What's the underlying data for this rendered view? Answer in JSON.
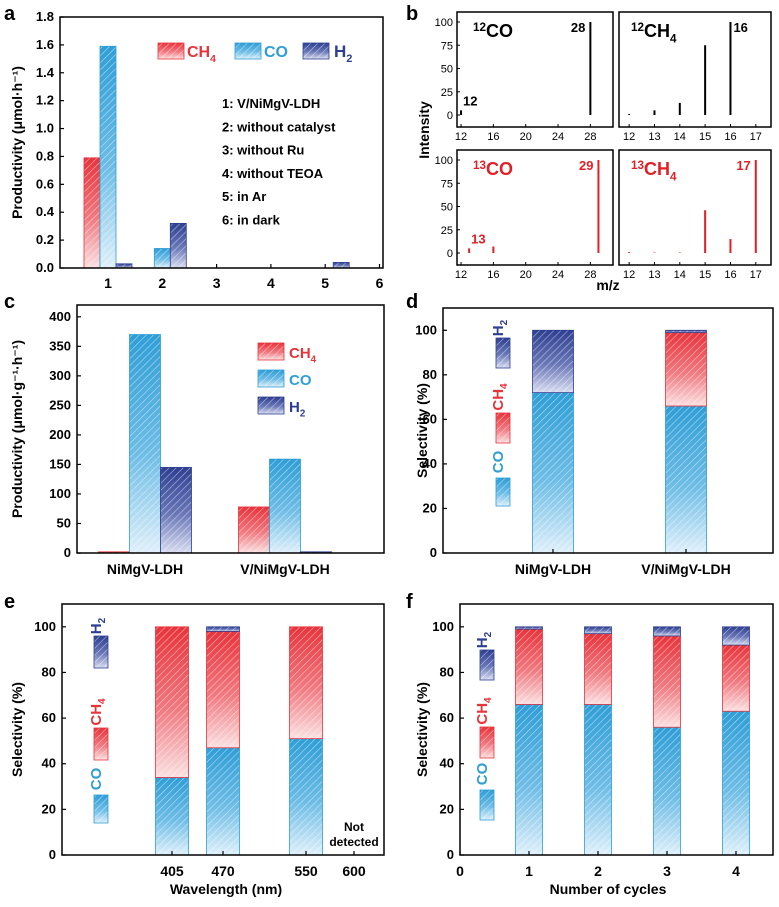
{
  "colors": {
    "ch4": "#e8333b",
    "co": "#2f9ed6",
    "h2": "#2e3f91",
    "axis": "#000000",
    "stem_black": "#000000",
    "stem_red": "#e21f26"
  },
  "chart_data": [
    {
      "panel": "a",
      "type": "bar",
      "ylabel": "Productivity (μmol·h⁻¹)",
      "ylim": [
        0,
        1.8
      ],
      "yticks": [
        "0.0",
        "0.2",
        "0.4",
        "0.6",
        "0.8",
        "1.0",
        "1.2",
        "1.4",
        "1.6",
        "1.8"
      ],
      "categories": [
        "1",
        "2",
        "3",
        "4",
        "5",
        "6"
      ],
      "series": [
        {
          "name": "CH4",
          "values": [
            0.79,
            0,
            0,
            0,
            0,
            0
          ]
        },
        {
          "name": "CO",
          "values": [
            1.59,
            0.14,
            0,
            0,
            0,
            0
          ]
        },
        {
          "name": "H2",
          "values": [
            0.03,
            0.32,
            0,
            0,
            0.04,
            0
          ]
        }
      ],
      "legend": {
        "ch4_base": "CH",
        "ch4_sub": "4",
        "co": "CO",
        "h2_base": "H",
        "h2_sub": "2"
      },
      "conditions": [
        "1: V/NiMgV-LDH",
        "2: without catalyst",
        "3: without Ru",
        "4: without TEOA",
        "5: in Ar",
        "6: in dark"
      ]
    },
    {
      "panel": "b",
      "type": "mass-spectrum",
      "ylabel": "Intensity",
      "xlabel": "m/z",
      "yticks": [
        "0",
        "25",
        "50",
        "75",
        "100"
      ],
      "subplots": [
        {
          "label_sup": "12",
          "label_base": "CO",
          "label_sub": "",
          "xticks": [
            "12",
            "16",
            "20",
            "24",
            "28"
          ],
          "x": [
            12,
            16,
            28
          ],
          "y": [
            5,
            0,
            100
          ],
          "peak_labels": [
            {
              "x": 12,
              "text": "12"
            },
            {
              "x": 28,
              "text": "28"
            }
          ],
          "color": "black"
        },
        {
          "label_sup": "12",
          "label_base": "CH",
          "label_sub": "4",
          "xticks": [
            "12",
            "13",
            "14",
            "15",
            "16",
            "17"
          ],
          "x": [
            12,
            13,
            14,
            15,
            16
          ],
          "y": [
            1,
            5,
            13,
            75,
            100
          ],
          "peak_labels": [
            {
              "x": 16,
              "text": "16"
            }
          ],
          "color": "black"
        },
        {
          "label_sup": "13",
          "label_base": "CO",
          "label_sub": "",
          "xticks": [
            "12",
            "16",
            "20",
            "24",
            "28"
          ],
          "x": [
            13,
            16,
            29
          ],
          "y": [
            5,
            7,
            100
          ],
          "peak_labels": [
            {
              "x": 13,
              "text": "13"
            },
            {
              "x": 29,
              "text": "29"
            }
          ],
          "color": "red"
        },
        {
          "label_sup": "13",
          "label_base": "CH",
          "label_sub": "4",
          "xticks": [
            "12",
            "13",
            "14",
            "15",
            "16",
            "17"
          ],
          "x": [
            12,
            13,
            14,
            15,
            16,
            17
          ],
          "y": [
            1,
            0.5,
            0.5,
            46,
            15,
            100
          ],
          "peak_labels": [
            {
              "x": 17,
              "text": "17"
            }
          ],
          "color": "red"
        }
      ]
    },
    {
      "panel": "c",
      "type": "bar",
      "ylabel": "Productivity (μmol·g⁻¹·h⁻¹)",
      "ylim": [
        0,
        420
      ],
      "yticks": [
        "0",
        "50",
        "100",
        "150",
        "200",
        "250",
        "300",
        "350",
        "400"
      ],
      "categories": [
        "NiMgV-LDH",
        "V/NiMgV-LDH"
      ],
      "series": [
        {
          "name": "CH4",
          "values": [
            2,
            78
          ]
        },
        {
          "name": "CO",
          "values": [
            370,
            159
          ]
        },
        {
          "name": "H2",
          "values": [
            145,
            2
          ]
        }
      ],
      "legend": {
        "ch4_base": "CH",
        "ch4_sub": "4",
        "co": "CO",
        "h2_base": "H",
        "h2_sub": "2"
      }
    },
    {
      "panel": "d",
      "type": "stacked-bar",
      "ylabel": "Selectivity (%)",
      "ylim": [
        0,
        110
      ],
      "yticks": [
        "0",
        "20",
        "40",
        "60",
        "80",
        "100"
      ],
      "categories": [
        "NiMgV-LDH",
        "V/NiMgV-LDH"
      ],
      "series": [
        {
          "name": "CO",
          "values": [
            72,
            66
          ]
        },
        {
          "name": "CH4",
          "values": [
            0,
            33
          ]
        },
        {
          "name": "H2",
          "values": [
            28,
            1
          ]
        }
      ],
      "legend": {
        "co": "CO",
        "ch4": "CH4",
        "h2": "H2"
      }
    },
    {
      "panel": "e",
      "type": "stacked-bar",
      "ylabel": "Selectivity (%)",
      "xlabel": "Wavelength (nm)",
      "ylim": [
        0,
        110
      ],
      "yticks": [
        "0",
        "20",
        "40",
        "60",
        "80",
        "100"
      ],
      "categories": [
        "405",
        "470",
        "550",
        "600"
      ],
      "series": [
        {
          "name": "CO",
          "values": [
            34,
            47,
            51,
            0
          ]
        },
        {
          "name": "CH4",
          "values": [
            66,
            51,
            49,
            0
          ]
        },
        {
          "name": "H2",
          "values": [
            0,
            2,
            0,
            0
          ]
        }
      ],
      "annotation_lines": [
        "Not",
        "detected"
      ],
      "legend": {
        "co": "CO",
        "ch4": "CH4",
        "h2": "H2"
      }
    },
    {
      "panel": "f",
      "type": "stacked-bar",
      "ylabel": "Selectivity (%)",
      "xlabel": "Number of cycles",
      "ylim": [
        0,
        110
      ],
      "xticks": [
        "0",
        "1",
        "2",
        "3",
        "4"
      ],
      "yticks": [
        "0",
        "20",
        "40",
        "60",
        "80",
        "100"
      ],
      "categories": [
        "1",
        "2",
        "3",
        "4"
      ],
      "series": [
        {
          "name": "CO",
          "values": [
            66,
            66,
            56,
            63
          ]
        },
        {
          "name": "CH4",
          "values": [
            33,
            31,
            40,
            29
          ]
        },
        {
          "name": "H2",
          "values": [
            1,
            3,
            4,
            8
          ]
        }
      ],
      "legend": {
        "co": "CO",
        "ch4": "CH4",
        "h2": "H2"
      }
    }
  ]
}
